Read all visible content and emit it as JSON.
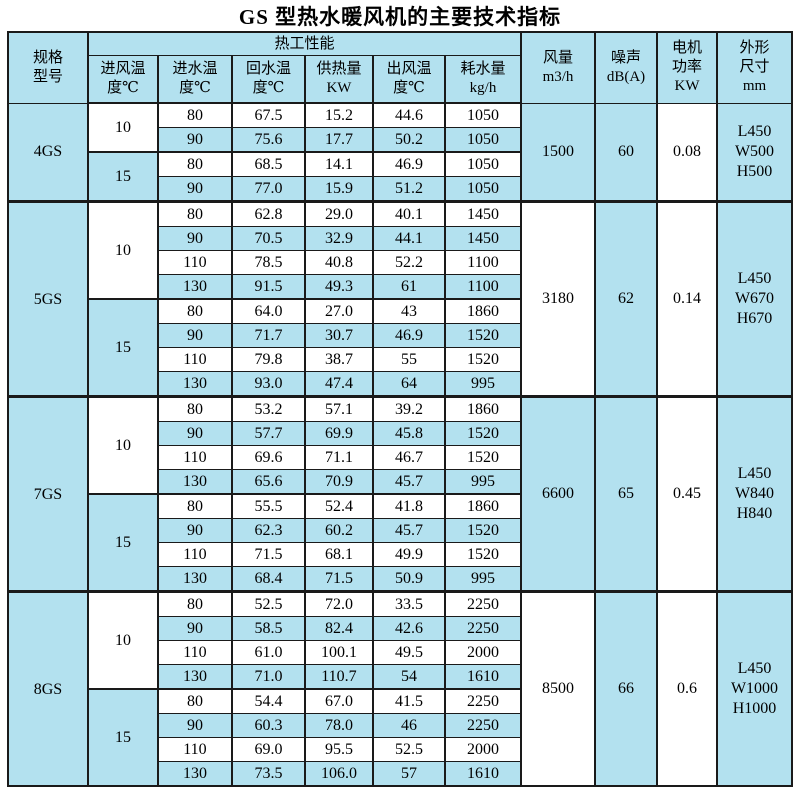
{
  "title": "GS 型热水暖风机的主要技术指标",
  "colors": {
    "cell_blue": "#b3e1ef",
    "border": "#1a1a1a",
    "cell_white": "#ffffff"
  },
  "header": {
    "spec_model": "规格\n型号",
    "thermal_group": "热工性能",
    "sub_columns": [
      "进风温\n度℃",
      "进水温\n度℃",
      "回水温\n度℃",
      "供热量\nKW",
      "出风温\n度℃",
      "耗水量\nkg/h"
    ],
    "air_volume": "风量\nm3/h",
    "noise": "噪声\ndB(A)",
    "motor_power": "电机\n功率\nKW",
    "dimensions": "外形\n尺寸\nmm"
  },
  "models": [
    {
      "name": "4GS",
      "air_volume": "1500",
      "noise": "60",
      "motor_power": "0.08",
      "dimensions": "L450\nW500\nH500",
      "groups": [
        {
          "inlet_air_temp": "10",
          "rows": [
            [
              "80",
              "67.5",
              "15.2",
              "44.6",
              "1050"
            ],
            [
              "90",
              "75.6",
              "17.7",
              "50.2",
              "1050"
            ]
          ]
        },
        {
          "inlet_air_temp": "15",
          "rows": [
            [
              "80",
              "68.5",
              "14.1",
              "46.9",
              "1050"
            ],
            [
              "90",
              "77.0",
              "15.9",
              "51.2",
              "1050"
            ]
          ]
        }
      ]
    },
    {
      "name": "5GS",
      "air_volume": "3180",
      "noise": "62",
      "motor_power": "0.14",
      "dimensions": "L450\nW670\nH670",
      "groups": [
        {
          "inlet_air_temp": "10",
          "rows": [
            [
              "80",
              "62.8",
              "29.0",
              "40.1",
              "1450"
            ],
            [
              "90",
              "70.5",
              "32.9",
              "44.1",
              "1450"
            ],
            [
              "110",
              "78.5",
              "40.8",
              "52.2",
              "1100"
            ],
            [
              "130",
              "91.5",
              "49.3",
              "61",
              "1100"
            ]
          ]
        },
        {
          "inlet_air_temp": "15",
          "rows": [
            [
              "80",
              "64.0",
              "27.0",
              "43",
              "1860"
            ],
            [
              "90",
              "71.7",
              "30.7",
              "46.9",
              "1520"
            ],
            [
              "110",
              "79.8",
              "38.7",
              "55",
              "1520"
            ],
            [
              "130",
              "93.0",
              "47.4",
              "64",
              "995"
            ]
          ]
        }
      ]
    },
    {
      "name": "7GS",
      "air_volume": "6600",
      "noise": "65",
      "motor_power": "0.45",
      "dimensions": "L450\nW840\nH840",
      "groups": [
        {
          "inlet_air_temp": "10",
          "rows": [
            [
              "80",
              "53.2",
              "57.1",
              "39.2",
              "1860"
            ],
            [
              "90",
              "57.7",
              "69.9",
              "45.8",
              "1520"
            ],
            [
              "110",
              "69.6",
              "71.1",
              "46.7",
              "1520"
            ],
            [
              "130",
              "65.6",
              "70.9",
              "45.7",
              "995"
            ]
          ]
        },
        {
          "inlet_air_temp": "15",
          "rows": [
            [
              "80",
              "55.5",
              "52.4",
              "41.8",
              "1860"
            ],
            [
              "90",
              "62.3",
              "60.2",
              "45.7",
              "1520"
            ],
            [
              "110",
              "71.5",
              "68.1",
              "49.9",
              "1520"
            ],
            [
              "130",
              "68.4",
              "71.5",
              "50.9",
              "995"
            ]
          ]
        }
      ]
    },
    {
      "name": "8GS",
      "air_volume": "8500",
      "noise": "66",
      "motor_power": "0.6",
      "dimensions": "L450\nW1000\nH1000",
      "groups": [
        {
          "inlet_air_temp": "10",
          "rows": [
            [
              "80",
              "52.5",
              "72.0",
              "33.5",
              "2250"
            ],
            [
              "90",
              "58.5",
              "82.4",
              "42.6",
              "2250"
            ],
            [
              "110",
              "61.0",
              "100.1",
              "49.5",
              "2000"
            ],
            [
              "130",
              "71.0",
              "110.7",
              "54",
              "1610"
            ]
          ]
        },
        {
          "inlet_air_temp": "15",
          "rows": [
            [
              "80",
              "54.4",
              "67.0",
              "41.5",
              "2250"
            ],
            [
              "90",
              "60.3",
              "78.0",
              "46",
              "2250"
            ],
            [
              "110",
              "69.0",
              "95.5",
              "52.5",
              "2000"
            ],
            [
              "130",
              "73.5",
              "106.0",
              "57",
              "1610"
            ]
          ]
        }
      ]
    }
  ]
}
